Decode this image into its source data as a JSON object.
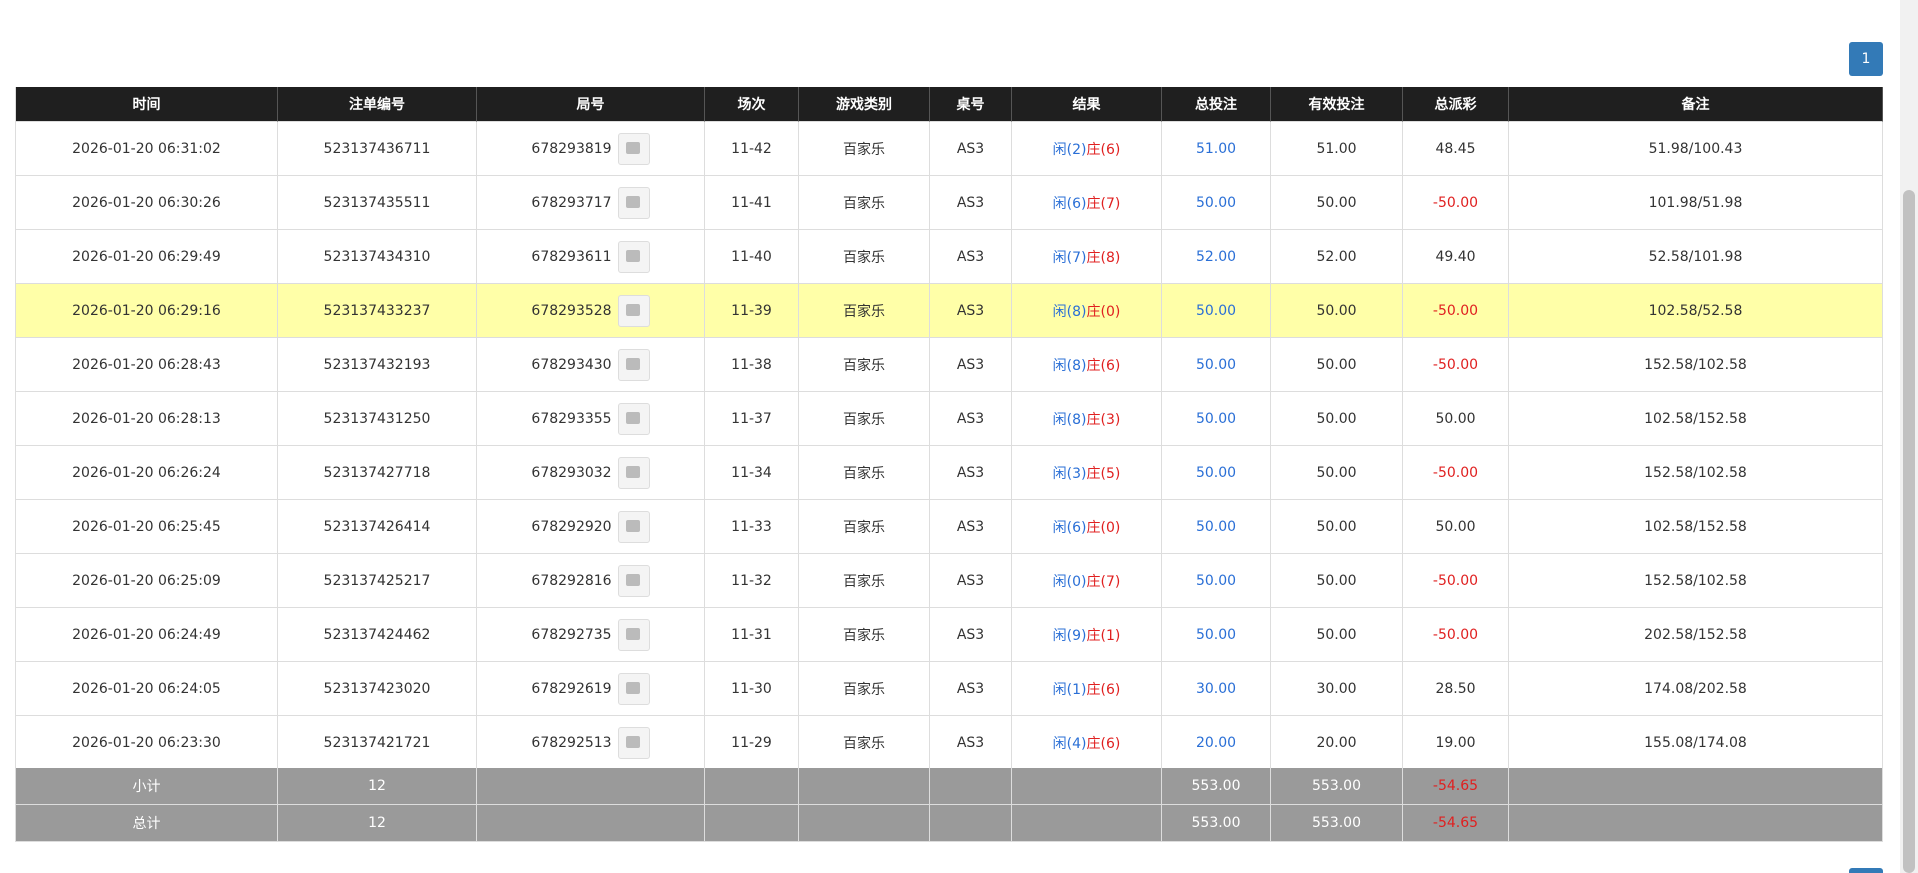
{
  "pagination": {
    "current": "1"
  },
  "table": {
    "headers": [
      "时间",
      "注单编号",
      "局号",
      "场次",
      "游戏类别",
      "桌号",
      "结果",
      "总投注",
      "有效投注",
      "总派彩",
      "备注"
    ],
    "rows": [
      {
        "time": "2026-01-20 06:31:02",
        "id": "523137436711",
        "round": "678293819",
        "scene": "11-42",
        "game": "百家乐",
        "desk": "AS3",
        "player": "闲(2)",
        "banker": "庄(6)",
        "bet": "51.00",
        "valid": "51.00",
        "payout": "48.45",
        "remark": "51.98/100.43"
      },
      {
        "time": "2026-01-20 06:30:26",
        "id": "523137435511",
        "round": "678293717",
        "scene": "11-41",
        "game": "百家乐",
        "desk": "AS3",
        "player": "闲(6)",
        "banker": "庄(7)",
        "bet": "50.00",
        "valid": "50.00",
        "payout": "-50.00",
        "remark": "101.98/51.98"
      },
      {
        "time": "2026-01-20 06:29:49",
        "id": "523137434310",
        "round": "678293611",
        "scene": "11-40",
        "game": "百家乐",
        "desk": "AS3",
        "player": "闲(7)",
        "banker": "庄(8)",
        "bet": "52.00",
        "valid": "52.00",
        "payout": "49.40",
        "remark": "52.58/101.98"
      },
      {
        "time": "2026-01-20 06:29:16",
        "id": "523137433237",
        "round": "678293528",
        "scene": "11-39",
        "game": "百家乐",
        "desk": "AS3",
        "player": "闲(8)",
        "banker": "庄(0)",
        "bet": "50.00",
        "valid": "50.00",
        "payout": "-50.00",
        "remark": "102.58/52.58",
        "highlight": true
      },
      {
        "time": "2026-01-20 06:28:43",
        "id": "523137432193",
        "round": "678293430",
        "scene": "11-38",
        "game": "百家乐",
        "desk": "AS3",
        "player": "闲(8)",
        "banker": "庄(6)",
        "bet": "50.00",
        "valid": "50.00",
        "payout": "-50.00",
        "remark": "152.58/102.58"
      },
      {
        "time": "2026-01-20 06:28:13",
        "id": "523137431250",
        "round": "678293355",
        "scene": "11-37",
        "game": "百家乐",
        "desk": "AS3",
        "player": "闲(8)",
        "banker": "庄(3)",
        "bet": "50.00",
        "valid": "50.00",
        "payout": "50.00",
        "remark": "102.58/152.58"
      },
      {
        "time": "2026-01-20 06:26:24",
        "id": "523137427718",
        "round": "678293032",
        "scene": "11-34",
        "game": "百家乐",
        "desk": "AS3",
        "player": "闲(3)",
        "banker": "庄(5)",
        "bet": "50.00",
        "valid": "50.00",
        "payout": "-50.00",
        "remark": "152.58/102.58"
      },
      {
        "time": "2026-01-20 06:25:45",
        "id": "523137426414",
        "round": "678292920",
        "scene": "11-33",
        "game": "百家乐",
        "desk": "AS3",
        "player": "闲(6)",
        "banker": "庄(0)",
        "bet": "50.00",
        "valid": "50.00",
        "payout": "50.00",
        "remark": "102.58/152.58"
      },
      {
        "time": "2026-01-20 06:25:09",
        "id": "523137425217",
        "round": "678292816",
        "scene": "11-32",
        "game": "百家乐",
        "desk": "AS3",
        "player": "闲(0)",
        "banker": "庄(7)",
        "bet": "50.00",
        "valid": "50.00",
        "payout": "-50.00",
        "remark": "152.58/102.58"
      },
      {
        "time": "2026-01-20 06:24:49",
        "id": "523137424462",
        "round": "678292735",
        "scene": "11-31",
        "game": "百家乐",
        "desk": "AS3",
        "player": "闲(9)",
        "banker": "庄(1)",
        "bet": "50.00",
        "valid": "50.00",
        "payout": "-50.00",
        "remark": "202.58/152.58"
      },
      {
        "time": "2026-01-20 06:24:05",
        "id": "523137423020",
        "round": "678292619",
        "scene": "11-30",
        "game": "百家乐",
        "desk": "AS3",
        "player": "闲(1)",
        "banker": "庄(6)",
        "bet": "30.00",
        "valid": "30.00",
        "payout": "28.50",
        "remark": "174.08/202.58"
      },
      {
        "time": "2026-01-20 06:23:30",
        "id": "523137421721",
        "round": "678292513",
        "scene": "11-29",
        "game": "百家乐",
        "desk": "AS3",
        "player": "闲(4)",
        "banker": "庄(6)",
        "bet": "20.00",
        "valid": "20.00",
        "payout": "19.00",
        "remark": "155.08/174.08"
      }
    ],
    "footer": [
      {
        "label": "小计",
        "count": "12",
        "bet": "553.00",
        "valid": "553.00",
        "payout": "-54.65"
      },
      {
        "label": "总计",
        "count": "12",
        "bet": "553.00",
        "valid": "553.00",
        "payout": "-54.65"
      }
    ]
  }
}
